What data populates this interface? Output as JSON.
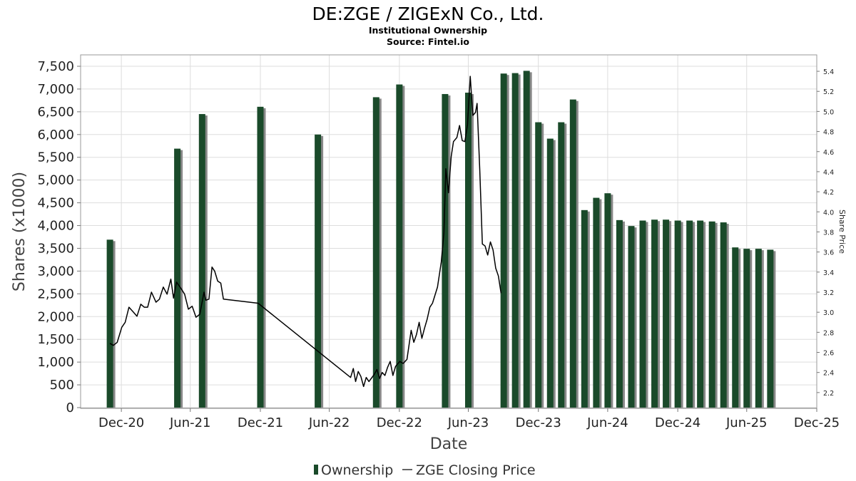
{
  "chart_data": {
    "type": "bar",
    "title": "DE:ZGE / ZIGExN Co., Ltd.",
    "subtitle_lines": [
      "Institutional Ownership",
      "Source: Fintel.io"
    ],
    "xlabel": "Date",
    "ylabel": "Shares (x1000)",
    "y2label": "Share Price",
    "ylim": [
      0,
      7500
    ],
    "y_ticks": [
      "0",
      "500",
      "1,000",
      "1,500",
      "2,000",
      "2,500",
      "3,000",
      "3,500",
      "4,000",
      "4,500",
      "5,000",
      "5,500",
      "6,000",
      "6,500",
      "7,000",
      "7,500"
    ],
    "y2lim": [
      2.05,
      5.45
    ],
    "y2_ticks": [
      "2.2",
      "2.4",
      "2.6",
      "2.8",
      "3.0",
      "3.2",
      "3.4",
      "3.6",
      "3.8",
      "4.0",
      "4.2",
      "4.4",
      "4.6",
      "4.8",
      "5.0",
      "5.2",
      "5.4"
    ],
    "xlim": [
      "2020-09-15",
      "2025-12-31"
    ],
    "x_ticks": [
      {
        "date": "2020-12-31",
        "label": "Dec-20"
      },
      {
        "date": "2021-06-30",
        "label": "Jun-21"
      },
      {
        "date": "2021-12-31",
        "label": "Dec-21"
      },
      {
        "date": "2022-06-30",
        "label": "Jun-22"
      },
      {
        "date": "2022-12-31",
        "label": "Dec-22"
      },
      {
        "date": "2023-06-30",
        "label": "Jun-23"
      },
      {
        "date": "2023-12-31",
        "label": "Dec-23"
      },
      {
        "date": "2024-06-30",
        "label": "Jun-24"
      },
      {
        "date": "2024-12-31",
        "label": "Dec-24"
      },
      {
        "date": "2025-06-30",
        "label": "Jun-25"
      },
      {
        "date": "2025-12-31",
        "label": "Dec-25"
      }
    ],
    "grid": true,
    "legend_position": "bottom-center",
    "colors": {
      "bar": "#1a4a2a",
      "bar_shadow": "#888888",
      "price_line": "#000000",
      "grid": "#dddddd"
    },
    "series": [
      {
        "name": "Ownership",
        "type": "bar",
        "points": [
          {
            "date": "2020-12-01",
            "value": 3690
          },
          {
            "date": "2021-05-27",
            "value": 5690
          },
          {
            "date": "2021-07-31",
            "value": 6450
          },
          {
            "date": "2021-12-31",
            "value": 6610
          },
          {
            "date": "2022-05-31",
            "value": 6000
          },
          {
            "date": "2022-10-31",
            "value": 6820
          },
          {
            "date": "2022-12-31",
            "value": 7100
          },
          {
            "date": "2023-04-30",
            "value": 6890
          },
          {
            "date": "2023-06-30",
            "value": 6920
          },
          {
            "date": "2023-10-01",
            "value": 7340
          },
          {
            "date": "2023-10-31",
            "value": 7350
          },
          {
            "date": "2023-11-30",
            "value": 7400
          },
          {
            "date": "2023-12-31",
            "value": 6270
          },
          {
            "date": "2024-01-31",
            "value": 5910
          },
          {
            "date": "2024-02-29",
            "value": 6270
          },
          {
            "date": "2024-03-31",
            "value": 6770
          },
          {
            "date": "2024-04-30",
            "value": 4340
          },
          {
            "date": "2024-05-31",
            "value": 4610
          },
          {
            "date": "2024-06-30",
            "value": 4710
          },
          {
            "date": "2024-07-31",
            "value": 4120
          },
          {
            "date": "2024-08-31",
            "value": 3990
          },
          {
            "date": "2024-09-30",
            "value": 4110
          },
          {
            "date": "2024-10-31",
            "value": 4130
          },
          {
            "date": "2024-11-30",
            "value": 4130
          },
          {
            "date": "2024-12-31",
            "value": 4110
          },
          {
            "date": "2025-01-31",
            "value": 4110
          },
          {
            "date": "2025-02-28",
            "value": 4110
          },
          {
            "date": "2025-03-31",
            "value": 4090
          },
          {
            "date": "2025-04-30",
            "value": 4070
          },
          {
            "date": "2025-05-31",
            "value": 3520
          },
          {
            "date": "2025-06-30",
            "value": 3490
          },
          {
            "date": "2025-07-31",
            "value": 3490
          },
          {
            "date": "2025-08-31",
            "value": 3470
          }
        ]
      },
      {
        "name": "ZGE Closing Price",
        "type": "line",
        "points": [
          {
            "date": "2020-12-01",
            "value": 2.69
          },
          {
            "date": "2020-12-10",
            "value": 2.67
          },
          {
            "date": "2020-12-20",
            "value": 2.7
          },
          {
            "date": "2021-01-01",
            "value": 2.85
          },
          {
            "date": "2021-01-10",
            "value": 2.9
          },
          {
            "date": "2021-01-20",
            "value": 3.05
          },
          {
            "date": "2021-02-01",
            "value": 3.0
          },
          {
            "date": "2021-02-10",
            "value": 2.96
          },
          {
            "date": "2021-02-20",
            "value": 3.08
          },
          {
            "date": "2021-03-01",
            "value": 3.05
          },
          {
            "date": "2021-03-10",
            "value": 3.05
          },
          {
            "date": "2021-03-20",
            "value": 3.2
          },
          {
            "date": "2021-04-01",
            "value": 3.1
          },
          {
            "date": "2021-04-10",
            "value": 3.13
          },
          {
            "date": "2021-04-20",
            "value": 3.25
          },
          {
            "date": "2021-04-30",
            "value": 3.18
          },
          {
            "date": "2021-05-10",
            "value": 3.33
          },
          {
            "date": "2021-05-17",
            "value": 3.14
          },
          {
            "date": "2021-05-25",
            "value": 3.3
          },
          {
            "date": "2021-06-05",
            "value": 3.24
          },
          {
            "date": "2021-06-15",
            "value": 3.18
          },
          {
            "date": "2021-06-25",
            "value": 3.03
          },
          {
            "date": "2021-07-05",
            "value": 3.06
          },
          {
            "date": "2021-07-15",
            "value": 2.95
          },
          {
            "date": "2021-07-25",
            "value": 2.98
          },
          {
            "date": "2021-08-05",
            "value": 3.2
          },
          {
            "date": "2021-08-10",
            "value": 3.12
          },
          {
            "date": "2021-08-18",
            "value": 3.13
          },
          {
            "date": "2021-08-26",
            "value": 3.45
          },
          {
            "date": "2021-09-02",
            "value": 3.41
          },
          {
            "date": "2021-09-10",
            "value": 3.31
          },
          {
            "date": "2021-09-18",
            "value": 3.29
          },
          {
            "date": "2021-09-25",
            "value": 3.13
          },
          {
            "date": "2021-12-25",
            "value": 3.09
          },
          {
            "date": "2022-08-25",
            "value": 2.35
          },
          {
            "date": "2022-09-01",
            "value": 2.44
          },
          {
            "date": "2022-09-07",
            "value": 2.31
          },
          {
            "date": "2022-09-14",
            "value": 2.41
          },
          {
            "date": "2022-09-21",
            "value": 2.36
          },
          {
            "date": "2022-09-28",
            "value": 2.26
          },
          {
            "date": "2022-10-05",
            "value": 2.35
          },
          {
            "date": "2022-10-12",
            "value": 2.31
          },
          {
            "date": "2022-10-26",
            "value": 2.38
          },
          {
            "date": "2022-11-02",
            "value": 2.43
          },
          {
            "date": "2022-11-09",
            "value": 2.34
          },
          {
            "date": "2022-11-16",
            "value": 2.4
          },
          {
            "date": "2022-11-23",
            "value": 2.37
          },
          {
            "date": "2022-11-30",
            "value": 2.45
          },
          {
            "date": "2022-12-07",
            "value": 2.51
          },
          {
            "date": "2022-12-14",
            "value": 2.37
          },
          {
            "date": "2022-12-21",
            "value": 2.46
          },
          {
            "date": "2023-01-01",
            "value": 2.51
          },
          {
            "date": "2023-01-10",
            "value": 2.49
          },
          {
            "date": "2023-01-20",
            "value": 2.53
          },
          {
            "date": "2023-01-31",
            "value": 2.82
          },
          {
            "date": "2023-02-07",
            "value": 2.7
          },
          {
            "date": "2023-02-14",
            "value": 2.78
          },
          {
            "date": "2023-02-21",
            "value": 2.9
          },
          {
            "date": "2023-02-28",
            "value": 2.74
          },
          {
            "date": "2023-03-07",
            "value": 2.84
          },
          {
            "date": "2023-03-14",
            "value": 2.93
          },
          {
            "date": "2023-03-21",
            "value": 3.05
          },
          {
            "date": "2023-03-28",
            "value": 3.09
          },
          {
            "date": "2023-04-10",
            "value": 3.25
          },
          {
            "date": "2023-04-20",
            "value": 3.5
          },
          {
            "date": "2023-04-27",
            "value": 3.79
          },
          {
            "date": "2023-05-02",
            "value": 4.43
          },
          {
            "date": "2023-05-09",
            "value": 4.19
          },
          {
            "date": "2023-05-16",
            "value": 4.55
          },
          {
            "date": "2023-05-22",
            "value": 4.7
          },
          {
            "date": "2023-05-31",
            "value": 4.74
          },
          {
            "date": "2023-06-07",
            "value": 4.86
          },
          {
            "date": "2023-06-14",
            "value": 4.71
          },
          {
            "date": "2023-06-21",
            "value": 4.7
          },
          {
            "date": "2023-06-28",
            "value": 4.87
          },
          {
            "date": "2023-07-05",
            "value": 5.35
          },
          {
            "date": "2023-07-12",
            "value": 4.96
          },
          {
            "date": "2023-07-19",
            "value": 4.99
          },
          {
            "date": "2023-07-23",
            "value": 5.08
          },
          {
            "date": "2023-07-30",
            "value": 4.43
          },
          {
            "date": "2023-08-06",
            "value": 3.68
          },
          {
            "date": "2023-08-13",
            "value": 3.66
          },
          {
            "date": "2023-08-20",
            "value": 3.57
          },
          {
            "date": "2023-08-27",
            "value": 3.7
          },
          {
            "date": "2023-09-03",
            "value": 3.62
          },
          {
            "date": "2023-09-10",
            "value": 3.44
          },
          {
            "date": "2023-09-17",
            "value": 3.36
          },
          {
            "date": "2023-09-24",
            "value": 3.19
          }
        ]
      }
    ],
    "legend": [
      "Ownership",
      "ZGE Closing Price"
    ]
  }
}
